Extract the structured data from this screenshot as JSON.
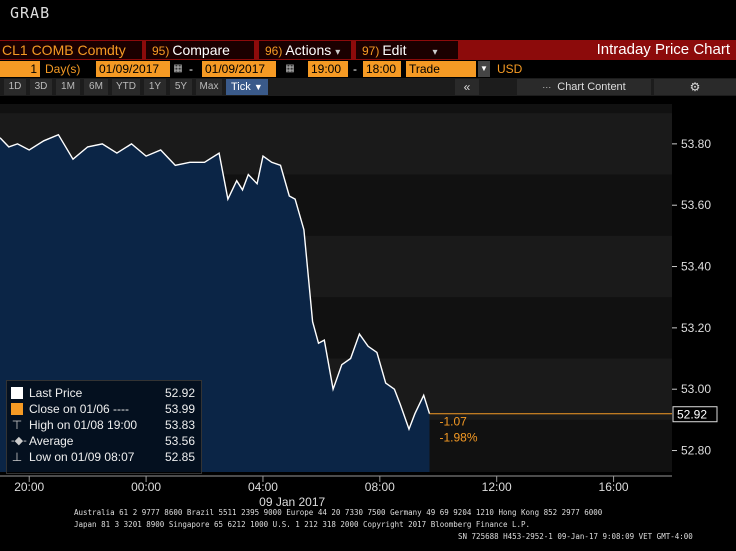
{
  "window": {
    "title": "GRAB"
  },
  "command_bar": {
    "security": "CL1 COMB Comdty",
    "menus": [
      {
        "num": "95)",
        "label": "Compare"
      },
      {
        "num": "96)",
        "label": "Actions"
      },
      {
        "num": "97)",
        "label": "Edit"
      }
    ],
    "chart_name": "Intraday Price Chart"
  },
  "params": {
    "days_value": "1",
    "days_label": "Day(s)",
    "start_date": "01/09/2017",
    "date_sep": "-",
    "end_date": "01/09/2017",
    "start_time": "19:00",
    "time_sep": "-",
    "end_time": "18:00",
    "field": "Trade",
    "currency": "USD"
  },
  "period_buttons": [
    "1D",
    "3D",
    "1M",
    "6M",
    "YTD",
    "1Y",
    "5Y",
    "Max"
  ],
  "tick_button": {
    "label": "Tick",
    "caret": "▼"
  },
  "toolbar": {
    "collapse_glyph": "«",
    "chart_content_label": "Chart Content",
    "chart_content_glyph": "⋯",
    "settings_glyph": "⚙"
  },
  "colors": {
    "background": "#000000",
    "command_bar": "#8c0b0b",
    "accent_orange": "#f59a24",
    "area_fill": "#0b2546",
    "price_line": "#ffffff",
    "last_price_line": "#f59a24"
  },
  "legend": {
    "rows": [
      {
        "symbol": "square-white",
        "label": "Last Price",
        "value": "52.92"
      },
      {
        "symbol": "square-orange",
        "label": "Close on 01/06 ----",
        "value": "53.99"
      },
      {
        "symbol": "high-tick",
        "label": "High on 01/08 19:00",
        "value": "53.83"
      },
      {
        "symbol": "average-line",
        "label": "Average",
        "value": "53.56"
      },
      {
        "symbol": "low-tick",
        "label": "Low on 01/09 08:07",
        "value": "52.85"
      }
    ]
  },
  "annotations": {
    "last_price_tag": "52.92",
    "change": "-1.07",
    "change_pct": "-1.98%"
  },
  "chart_data": {
    "type": "area",
    "title": "",
    "xlabel": "09 Jan 2017",
    "ylabel": "",
    "ylim": [
      52.73,
      53.93
    ],
    "y_ticks": [
      "53.80",
      "53.60",
      "53.40",
      "53.20",
      "53.00",
      "52.80"
    ],
    "x_ticks": [
      "20:00",
      "00:00",
      "04:00",
      "08:00",
      "12:00",
      "16:00"
    ],
    "x_unit": "hours since 19:00 on 01/08",
    "x_tick_values": [
      1,
      5,
      9,
      13,
      17,
      21
    ],
    "x_range": [
      0,
      23
    ],
    "grid": false,
    "legend_position": "bottom-left",
    "series": [
      {
        "name": "Last Price",
        "x": [
          0,
          0.3,
          0.6,
          1.0,
          1.5,
          2.0,
          2.5,
          3.0,
          3.5,
          4.0,
          4.5,
          5.0,
          5.5,
          6.0,
          6.5,
          7.0,
          7.5,
          7.8,
          8.1,
          8.3,
          8.5,
          8.8,
          9.0,
          9.3,
          9.6,
          9.9,
          10.1,
          10.4,
          10.7,
          10.9,
          11.1,
          11.4,
          11.7,
          12.0,
          12.3,
          12.6,
          12.9,
          13.2,
          13.5,
          13.7,
          14.0,
          14.2,
          14.5,
          14.7
        ],
        "values": [
          53.82,
          53.79,
          53.8,
          53.78,
          53.81,
          53.83,
          53.75,
          53.79,
          53.8,
          53.77,
          53.8,
          53.76,
          53.78,
          53.73,
          53.74,
          53.74,
          53.77,
          53.62,
          53.68,
          53.65,
          53.7,
          53.67,
          53.76,
          53.74,
          53.73,
          53.63,
          53.62,
          53.52,
          53.22,
          53.15,
          53.16,
          53.0,
          53.08,
          53.1,
          53.18,
          53.14,
          53.12,
          53.02,
          53.0,
          52.95,
          52.87,
          52.92,
          52.98,
          52.92
        ]
      }
    ]
  },
  "footer": {
    "line1": "Australia 61 2 9777 8600 Brazil 5511 2395 9000 Europe 44 20 7330 7500 Germany 49 69 9204 1210 Hong Kong 852 2977 6000",
    "line2": "Japan 81 3 3201 8900       Singapore 65 6212 1000       U.S. 1 212 318 2000       Copyright 2017 Bloomberg Finance L.P.",
    "line3": "SN 725688 H453-2952-1 09-Jan-17   9:08:09 VET   GMT-4:00"
  }
}
